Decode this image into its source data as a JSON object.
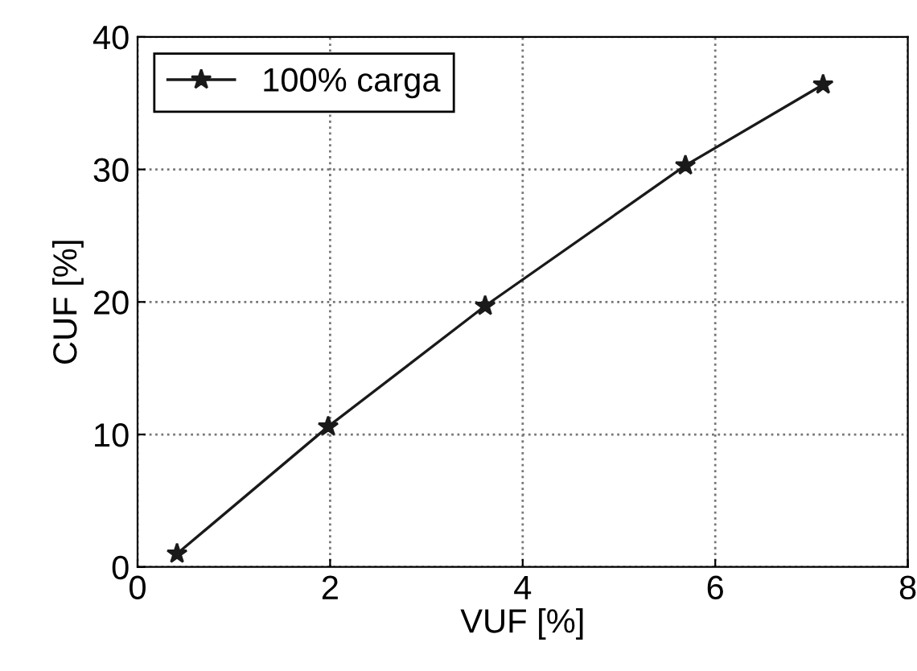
{
  "chart_data": {
    "type": "line",
    "xlabel": "VUF [%]",
    "ylabel": "CUF [%]",
    "x": [
      0.41,
      1.98,
      3.61,
      5.69,
      7.12
    ],
    "series": [
      {
        "name": "100% carga",
        "color": "#1a1a1a",
        "values": [
          1.0,
          10.6,
          19.7,
          30.3,
          36.4
        ]
      }
    ],
    "xlim": [
      0,
      8
    ],
    "ylim": [
      0,
      40
    ],
    "xticks": [
      0,
      2,
      4,
      6,
      8
    ],
    "yticks": [
      0,
      10,
      20,
      30,
      40
    ],
    "grid": true,
    "legend": "top left",
    "marker": "star",
    "line_style": "solid"
  }
}
